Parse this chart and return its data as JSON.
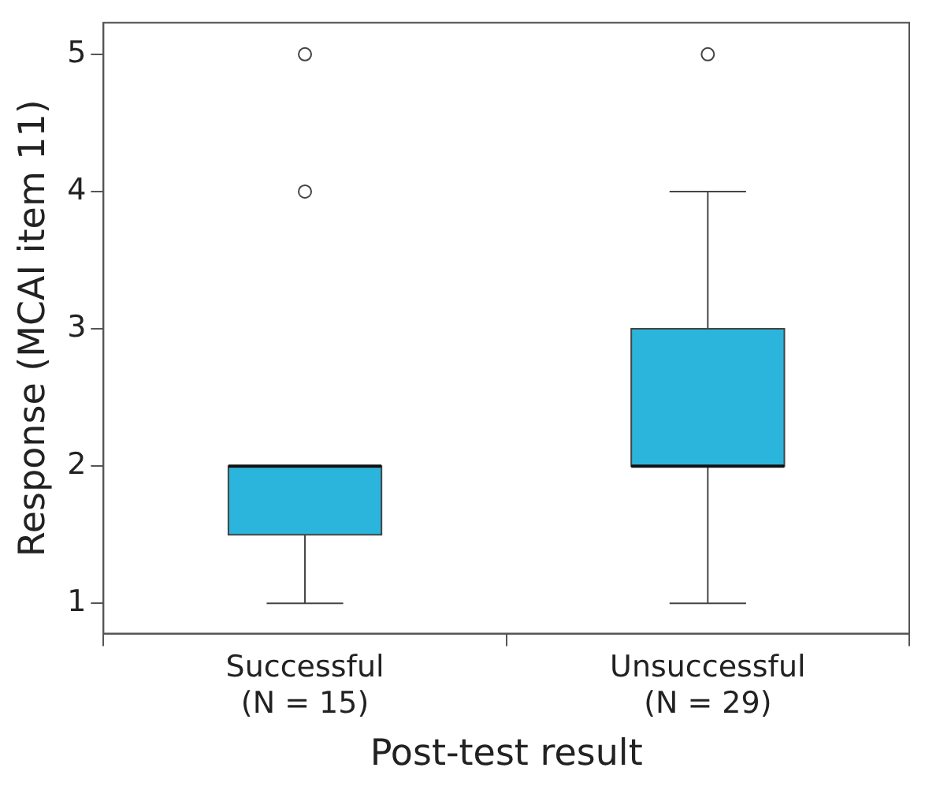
{
  "chart_data": {
    "type": "box",
    "xlabel": "Post-test result",
    "ylabel": "Response (MCAI item 11)",
    "categories": [
      "Successful\n(N = 15)",
      "Unsuccessful\n(N = 29)"
    ],
    "color": "#2cb5dc",
    "boxes": [
      {
        "low": 1,
        "q1": 1.5,
        "median": 2,
        "q3": 2,
        "high": 2,
        "outliers": [
          4,
          5
        ]
      },
      {
        "low": 1,
        "q1": 2,
        "median": 2,
        "q3": 3,
        "high": 4,
        "outliers": [
          5
        ]
      }
    ],
    "ylim": [
      0.78,
      5.23
    ],
    "yticks": [
      1,
      2,
      3,
      4,
      5
    ],
    "grid": false,
    "legend": false
  }
}
